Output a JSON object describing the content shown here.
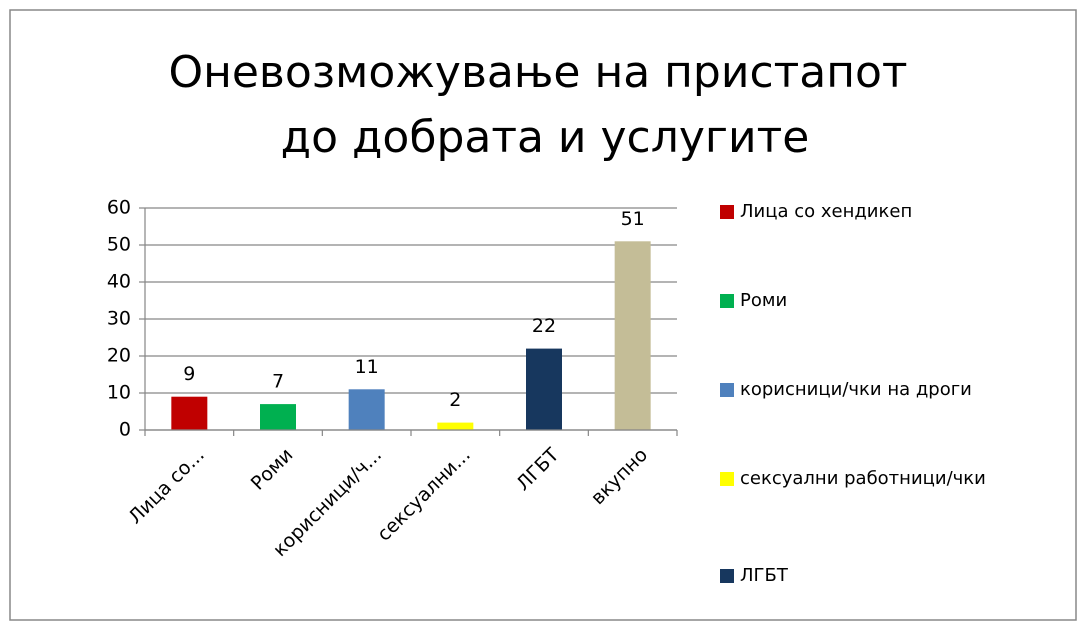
{
  "chart_data": {
    "type": "bar",
    "title": "Оневозможување на пристапот до добрата и услугите",
    "categories": [
      "Лица со...",
      "Роми",
      "корисници/ч...",
      "сексуални...",
      "ЛГБТ",
      "вкупно"
    ],
    "values": [
      9,
      7,
      11,
      2,
      22,
      51
    ],
    "colors": [
      "#c00000",
      "#00b050",
      "#4f81bd",
      "#ffff00",
      "#17375e",
      "#c4bd97"
    ],
    "ylim": [
      0,
      60
    ],
    "yticks": [
      0,
      10,
      20,
      30,
      40,
      50,
      60
    ],
    "grid": true,
    "legend_position": "right",
    "legend": [
      {
        "name": "Лица со хендикеп",
        "color": "#c00000"
      },
      {
        "name": "Роми",
        "color": "#00b050"
      },
      {
        "name": "корисници/чки на дроги",
        "color": "#4f81bd"
      },
      {
        "name": "сексуални работници/чки",
        "color": "#ffff00"
      },
      {
        "name": "ЛГБТ",
        "color": "#17375e"
      }
    ]
  }
}
